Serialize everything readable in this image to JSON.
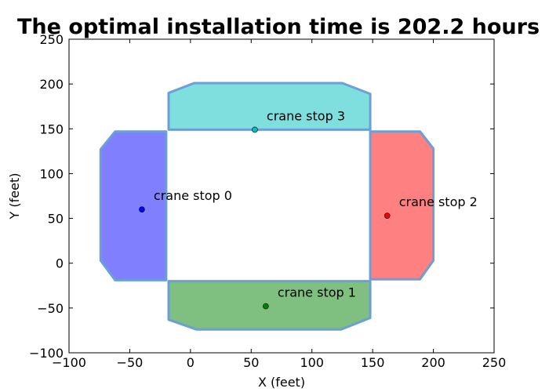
{
  "chart_data": {
    "type": "scatter",
    "title": "The optimal installation time is  202.2 hours",
    "xlabel": "X (feet)",
    "ylabel": "Y (feet)",
    "xlim": [
      -100,
      250
    ],
    "ylim": [
      -100,
      250
    ],
    "xticks": [
      -100,
      -50,
      0,
      50,
      100,
      150,
      200,
      250
    ],
    "yticks": [
      -100,
      -50,
      0,
      50,
      100,
      150,
      200,
      250
    ],
    "xtick_labels": [
      "−100",
      "−50",
      "0",
      "50",
      "100",
      "150",
      "200",
      "250"
    ],
    "ytick_labels": [
      "−100",
      "−50",
      "0",
      "50",
      "100",
      "150",
      "200",
      "250"
    ],
    "grid": false,
    "outline_color": "#6a9fd8",
    "regions": [
      {
        "color": "#8080ff",
        "points": [
          [
            -62,
            147
          ],
          [
            -20,
            147
          ],
          [
            -20,
            -19
          ],
          [
            -62,
            -19
          ],
          [
            -74,
            3
          ],
          [
            -74,
            127
          ]
        ]
      },
      {
        "color": "#7fbf7f",
        "points": [
          [
            -18,
            -20
          ],
          [
            148,
            -20
          ],
          [
            148,
            -61
          ],
          [
            124,
            -74
          ],
          [
            5,
            -74
          ],
          [
            -18,
            -63
          ]
        ]
      },
      {
        "color": "#ff8080",
        "points": [
          [
            148,
            147
          ],
          [
            189,
            147
          ],
          [
            200,
            128
          ],
          [
            200,
            3
          ],
          [
            189,
            -18
          ],
          [
            148,
            -18
          ]
        ]
      },
      {
        "color": "#7fdfdf",
        "points": [
          [
            -18,
            149
          ],
          [
            148,
            149
          ],
          [
            148,
            189
          ],
          [
            125,
            201
          ],
          [
            3,
            201
          ],
          [
            -18,
            190
          ]
        ]
      }
    ],
    "points": [
      {
        "x": -40,
        "y": 60,
        "color": "#0000ff",
        "label": "crane stop 0"
      },
      {
        "x": 62,
        "y": -48,
        "color": "#008000",
        "label": "crane stop 1"
      },
      {
        "x": 162,
        "y": 53,
        "color": "#ff0000",
        "label": "crane stop 2"
      },
      {
        "x": 53,
        "y": 149,
        "color": "#00bfbf",
        "label": "crane stop 3"
      }
    ]
  }
}
